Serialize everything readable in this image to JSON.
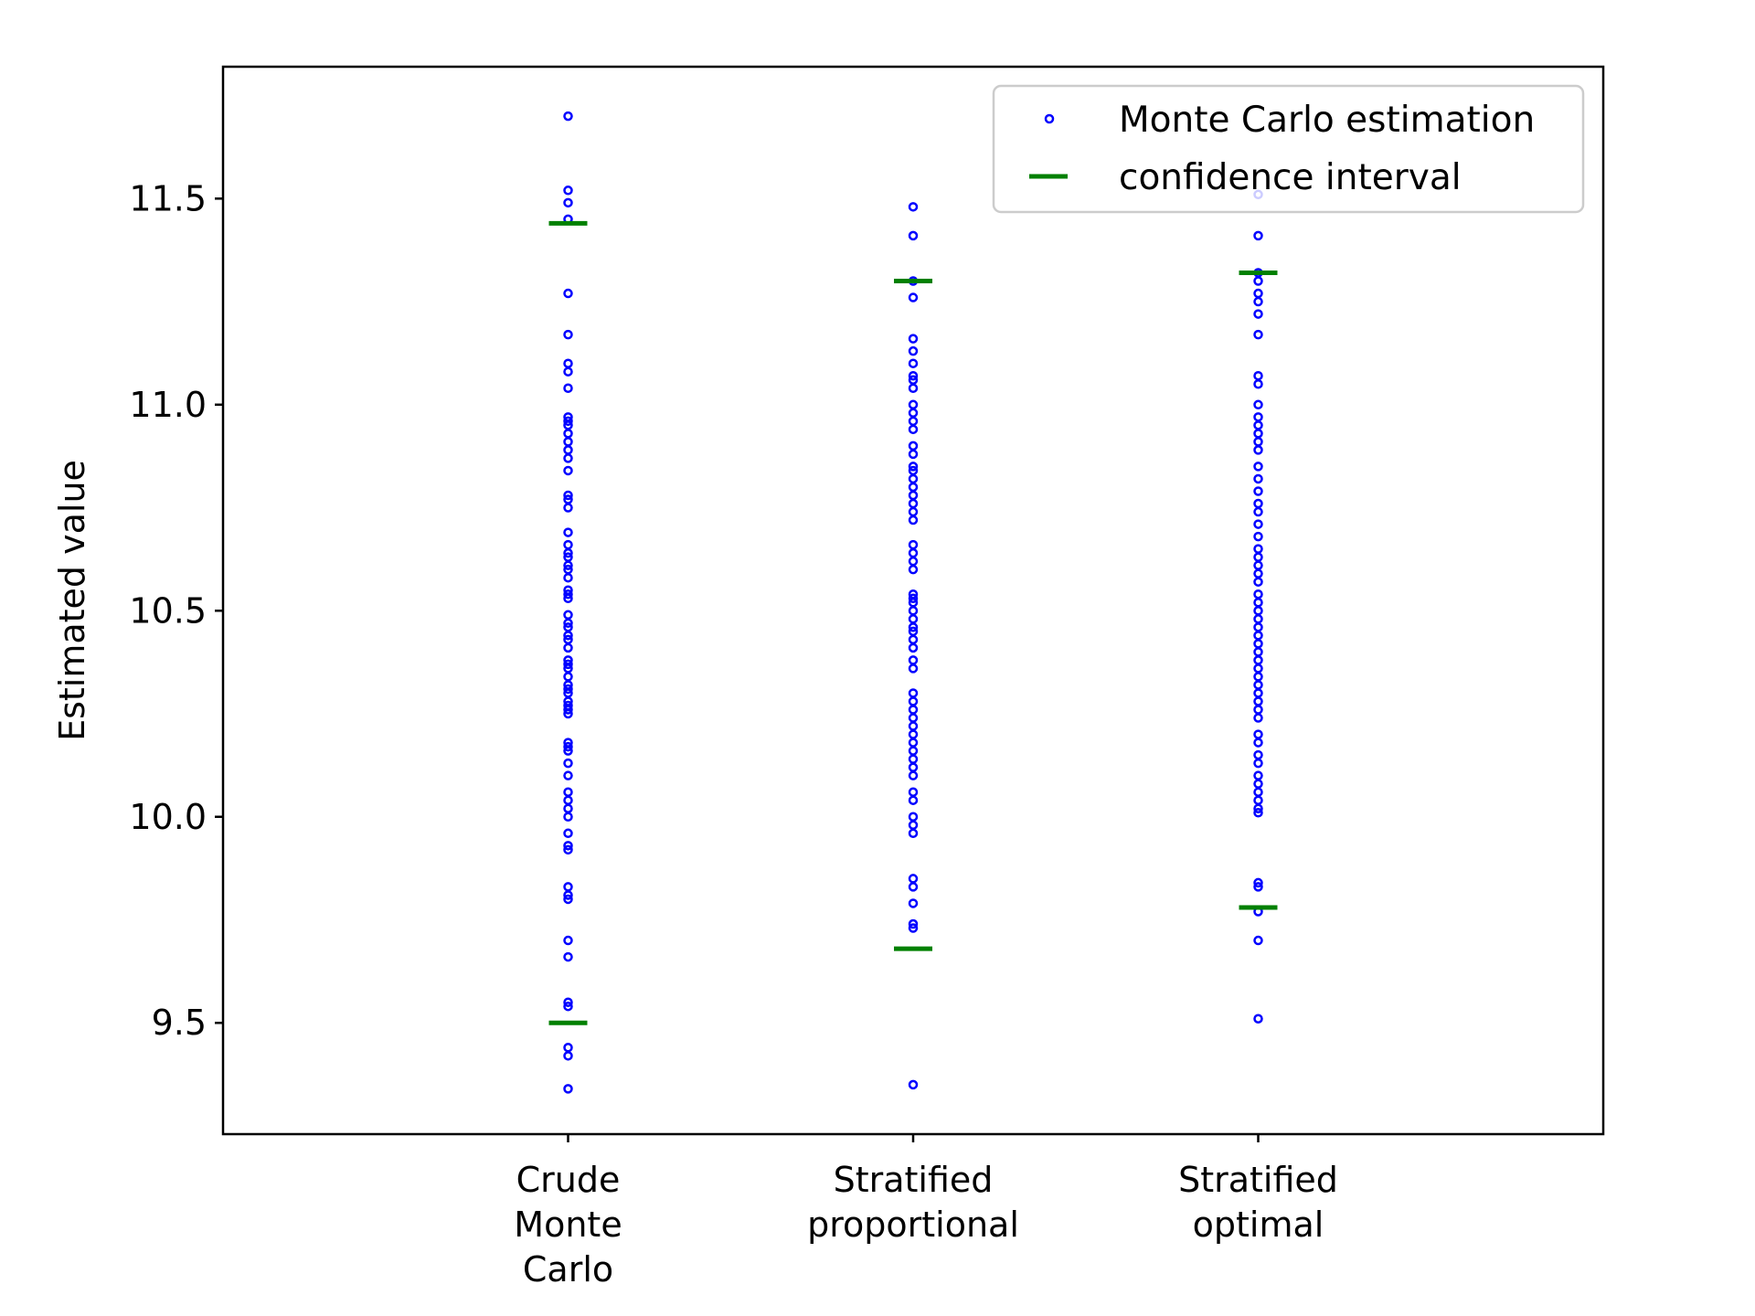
{
  "chart_data": {
    "type": "scatter",
    "title": "",
    "xlabel": "",
    "ylabel": "Estimated value",
    "ylim": [
      9.23,
      11.82
    ],
    "xlim": [
      0,
      4
    ],
    "yticks": [
      9.5,
      10.0,
      10.5,
      11.0,
      11.5
    ],
    "ytick_labels": [
      "9.5",
      "10.0",
      "10.5",
      "11.0",
      "11.5"
    ],
    "categories": [
      [
        "Crude",
        "Monte",
        "Carlo"
      ],
      [
        "Stratified",
        "proportional"
      ],
      [
        "Stratified",
        "optimal"
      ]
    ],
    "grid": false,
    "legend_position": "top-right",
    "colors": {
      "points": "#0000ff",
      "interval": "#008000"
    },
    "series": [
      {
        "name": "Monte Carlo estimation",
        "marker": "open-circle",
        "groups": [
          [
            11.7,
            11.52,
            11.49,
            11.45,
            11.27,
            11.17,
            11.1,
            11.08,
            11.04,
            10.97,
            10.96,
            10.95,
            10.93,
            10.91,
            10.89,
            10.87,
            10.84,
            10.78,
            10.77,
            10.75,
            10.69,
            10.66,
            10.64,
            10.63,
            10.61,
            10.6,
            10.58,
            10.55,
            10.54,
            10.53,
            10.49,
            10.47,
            10.46,
            10.44,
            10.43,
            10.41,
            10.38,
            10.37,
            10.36,
            10.34,
            10.32,
            10.31,
            10.3,
            10.28,
            10.27,
            10.26,
            10.25,
            10.18,
            10.17,
            10.16,
            10.13,
            10.1,
            10.06,
            10.04,
            10.02,
            10.0,
            9.96,
            9.93,
            9.92,
            9.83,
            9.81,
            9.8,
            9.7,
            9.66,
            9.55,
            9.54,
            9.44,
            9.42,
            9.34
          ],
          [
            11.48,
            11.41,
            11.3,
            11.26,
            11.16,
            11.13,
            11.1,
            11.07,
            11.06,
            11.04,
            11.0,
            10.98,
            10.96,
            10.94,
            10.9,
            10.88,
            10.85,
            10.84,
            10.82,
            10.8,
            10.78,
            10.76,
            10.74,
            10.72,
            10.66,
            10.64,
            10.62,
            10.6,
            10.54,
            10.53,
            10.52,
            10.5,
            10.48,
            10.46,
            10.45,
            10.43,
            10.41,
            10.38,
            10.36,
            10.3,
            10.28,
            10.26,
            10.24,
            10.22,
            10.2,
            10.18,
            10.16,
            10.14,
            10.12,
            10.1,
            10.06,
            10.04,
            10.0,
            9.98,
            9.96,
            9.85,
            9.83,
            9.79,
            9.74,
            9.73,
            9.35
          ],
          [
            11.51,
            11.41,
            11.32,
            11.3,
            11.27,
            11.25,
            11.22,
            11.17,
            11.07,
            11.05,
            11.0,
            10.97,
            10.95,
            10.93,
            10.91,
            10.89,
            10.85,
            10.82,
            10.79,
            10.76,
            10.74,
            10.71,
            10.68,
            10.65,
            10.63,
            10.61,
            10.59,
            10.57,
            10.54,
            10.52,
            10.5,
            10.48,
            10.46,
            10.44,
            10.42,
            10.4,
            10.38,
            10.36,
            10.34,
            10.32,
            10.3,
            10.28,
            10.26,
            10.24,
            10.2,
            10.18,
            10.15,
            10.13,
            10.1,
            10.08,
            10.06,
            10.04,
            10.02,
            10.01,
            9.84,
            9.83,
            9.77,
            9.7,
            9.51
          ]
        ]
      },
      {
        "name": "confidence interval",
        "marker": "hline",
        "groups": [
          [
            11.44,
            9.5
          ],
          [
            11.3,
            9.68
          ],
          [
            11.32,
            9.78
          ]
        ]
      }
    ]
  }
}
